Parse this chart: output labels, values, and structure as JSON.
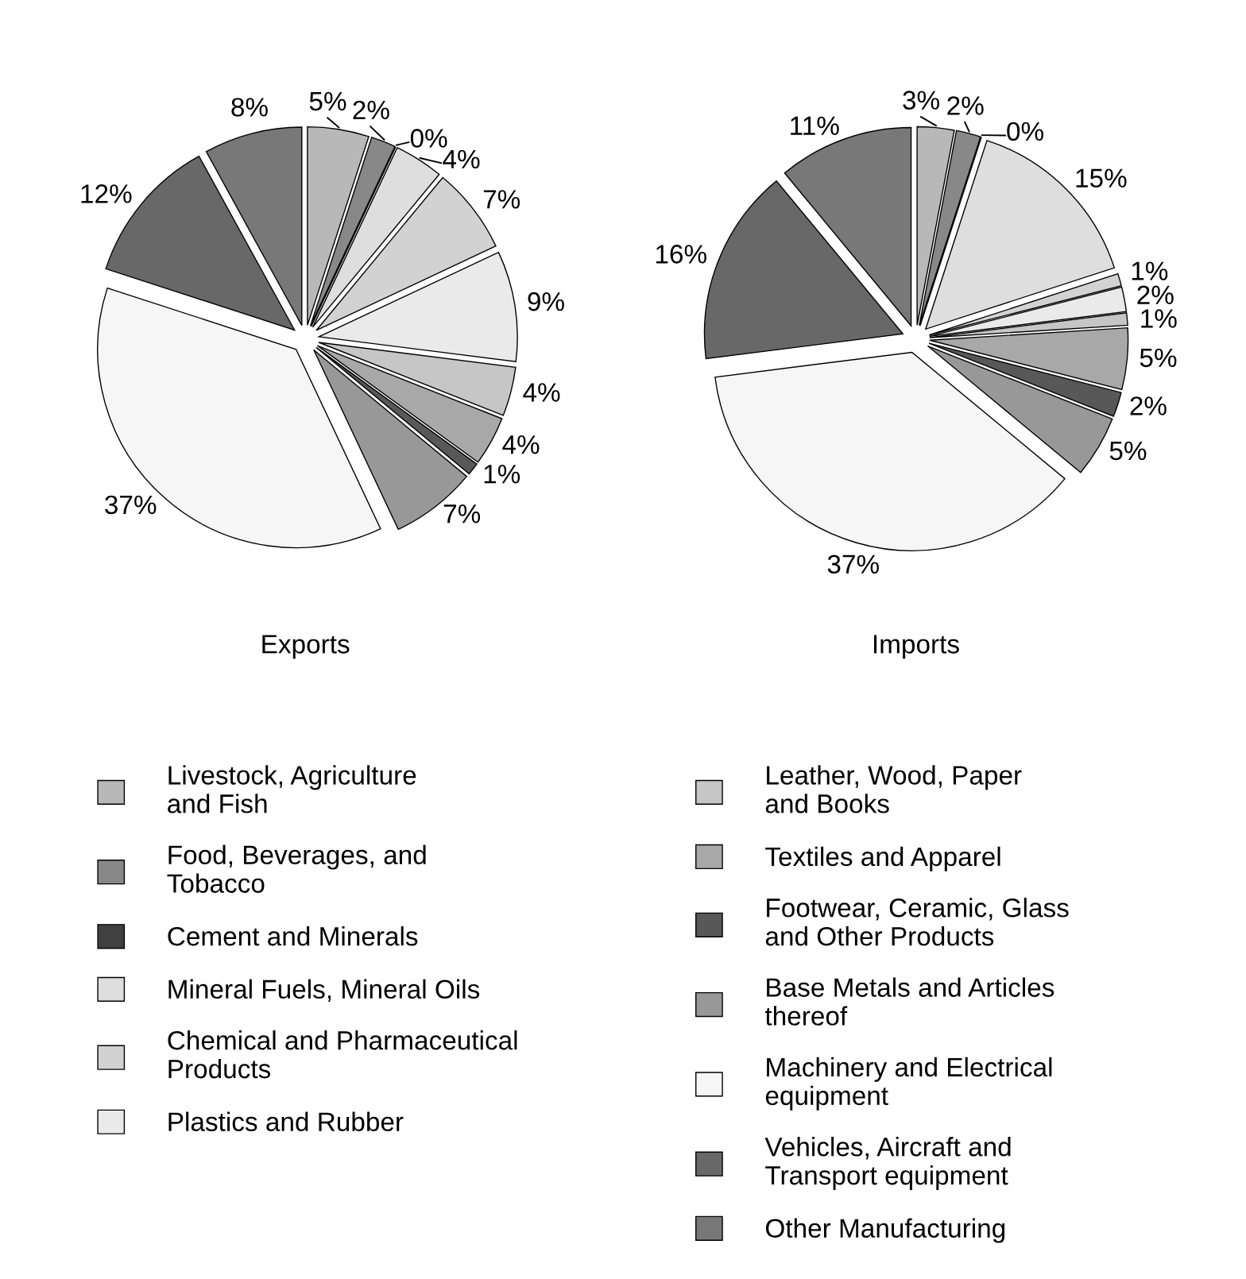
{
  "chart_data": [
    {
      "type": "pie",
      "title": "Exports",
      "legend": "bottom",
      "categories": [
        "Livestock, Agriculture\nand Fish",
        "Food, Beverages, and\nTobacco",
        "Cement and Minerals",
        "Mineral Fuels, Mineral Oils",
        "Chemical and Pharmaceutical\nProducts",
        "Plastics and Rubber",
        "Leather, Wood, Paper\nand Books",
        "Textiles and Apparel",
        "Footwear, Ceramic, Glass\nand Other Products",
        "Base Metals and Articles\nthereof",
        "Machinery and Electrical\nequipment",
        "Vehicles, Aircraft and\nTransport equipment",
        "Other Manufacturing"
      ],
      "values": [
        5,
        2,
        0,
        4,
        7,
        9,
        4,
        4,
        1,
        7,
        37,
        12,
        8
      ],
      "colors": [
        "#b8b8b8",
        "#888888",
        "#404040",
        "#dedede",
        "#d2d2d2",
        "#eaeaea",
        "#c6c6c6",
        "#a8a8a8",
        "#585858",
        "#989898",
        "#f6f6f6",
        "#686868",
        "#787878"
      ],
      "value_labels": [
        "5%",
        "2%",
        "0%",
        "4%",
        "7%",
        "9%",
        "4%",
        "4%",
        "1%",
        "7%",
        "37%",
        "12%",
        "8%"
      ]
    },
    {
      "type": "pie",
      "title": "Imports",
      "categories": [
        null,
        null,
        null,
        null,
        null,
        null,
        null,
        null,
        null,
        null,
        null,
        null,
        null
      ],
      "values": [
        3,
        2,
        0,
        15,
        1,
        2,
        1,
        5,
        2,
        5,
        37,
        16,
        11
      ],
      "colors": [
        "#b8b8b8",
        "#888888",
        "#404040",
        "#dedede",
        "#d2d2d2",
        "#eaeaea",
        "#c6c6c6",
        "#a8a8a8",
        "#585858",
        "#989898",
        "#f6f6f6",
        "#686868",
        "#787878"
      ],
      "value_labels": [
        "3%",
        "2%",
        "0%",
        "15%",
        "1%",
        "2%",
        "1%",
        "5%",
        "2%",
        "5%",
        "37%",
        "16%",
        "11%"
      ]
    }
  ]
}
